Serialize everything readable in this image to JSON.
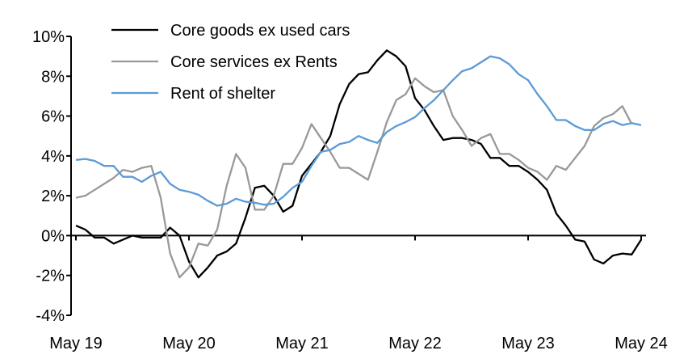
{
  "chart_data": {
    "type": "line",
    "title": "",
    "xlabel": "",
    "ylabel": "",
    "ylim": [
      -4,
      10
    ],
    "yticks": [
      -4,
      -2,
      0,
      2,
      4,
      6,
      8,
      10
    ],
    "ytick_labels": [
      "-4%",
      "-2%",
      "0%",
      "2%",
      "4%",
      "6%",
      "8%",
      "10%"
    ],
    "xtick_labels": [
      "May 19",
      "May 20",
      "May 21",
      "May 22",
      "May 23",
      "May 24"
    ],
    "x_start": "May 19",
    "frequency": "monthly",
    "grid": false,
    "legend_position": "top-left",
    "series": [
      {
        "name": "Core goods ex used cars",
        "color": "#000000",
        "values": [
          0.5,
          0.3,
          -0.1,
          -0.1,
          -0.4,
          -0.2,
          0.0,
          -0.1,
          -0.1,
          -0.1,
          0.4,
          0.0,
          -1.3,
          -2.1,
          -1.6,
          -1.0,
          -0.8,
          -0.4,
          0.9,
          2.4,
          2.5,
          2.0,
          1.2,
          1.5,
          3.0,
          3.6,
          4.2,
          5.0,
          6.6,
          7.6,
          8.1,
          8.2,
          8.8,
          9.3,
          9.0,
          8.5,
          6.9,
          6.3,
          5.5,
          4.8,
          4.9,
          4.9,
          4.8,
          4.6,
          3.9,
          3.9,
          3.5,
          3.5,
          3.2,
          2.8,
          2.3,
          1.1,
          0.5,
          -0.2,
          -0.3,
          -1.2,
          -1.4,
          -1.0,
          -0.9,
          -0.95,
          -0.2
        ]
      },
      {
        "name": "Core services ex Rents",
        "color": "#999999",
        "values": [
          1.9,
          2.0,
          2.3,
          2.6,
          2.9,
          3.3,
          3.2,
          3.4,
          3.5,
          1.9,
          -0.9,
          -2.1,
          -1.6,
          -0.4,
          -0.5,
          0.3,
          2.5,
          4.1,
          3.4,
          1.3,
          1.3,
          2.0,
          3.6,
          3.6,
          4.4,
          5.6,
          4.9,
          4.2,
          3.4,
          3.4,
          3.1,
          2.8,
          4.2,
          5.7,
          6.8,
          7.1,
          7.9,
          7.5,
          7.2,
          7.3,
          6.0,
          5.3,
          4.5,
          4.9,
          5.1,
          4.1,
          4.1,
          3.8,
          3.4,
          3.2,
          2.8,
          3.5,
          3.3,
          3.9,
          4.5,
          5.5,
          5.9,
          6.1,
          6.5,
          5.6
        ]
      },
      {
        "name": "Rent of shelter",
        "color": "#5B9BD5",
        "values": [
          3.8,
          3.85,
          3.75,
          3.5,
          3.5,
          2.95,
          2.95,
          2.7,
          3.0,
          3.2,
          2.6,
          2.3,
          2.2,
          2.05,
          1.75,
          1.5,
          1.6,
          1.85,
          1.7,
          1.65,
          1.55,
          1.6,
          1.95,
          2.4,
          2.7,
          3.5,
          4.2,
          4.3,
          4.6,
          4.7,
          5.0,
          4.8,
          4.65,
          5.2,
          5.5,
          5.7,
          5.95,
          6.4,
          6.8,
          7.3,
          7.8,
          8.25,
          8.4,
          8.7,
          9.0,
          8.9,
          8.6,
          8.1,
          7.8,
          7.1,
          6.5,
          5.8,
          5.8,
          5.5,
          5.3,
          5.3,
          5.6,
          5.75,
          5.55,
          5.65,
          5.55
        ]
      }
    ]
  }
}
